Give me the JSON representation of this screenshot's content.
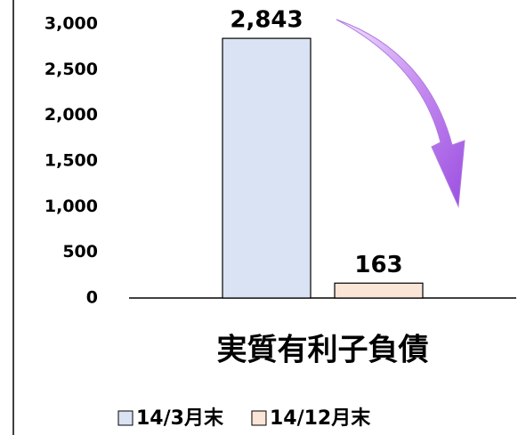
{
  "chart_data": {
    "type": "bar",
    "categories": [
      "実質有利子負債"
    ],
    "series": [
      {
        "name": "14/3月末",
        "color": "#dae3f3",
        "values": [
          2843
        ],
        "value_labels": [
          "2,843"
        ]
      },
      {
        "name": "14/12月末",
        "color": "#fbe5d6",
        "values": [
          163
        ],
        "value_labels": [
          "163"
        ]
      }
    ],
    "ylim": [
      0,
      3000
    ],
    "yticks": [
      0,
      500,
      {
        "value": 1000,
        "label": "1,000"
      },
      {
        "value": 1500,
        "label": "1,500"
      },
      {
        "value": 2000,
        "label": "2,000"
      },
      {
        "value": 2500,
        "label": "2,500"
      },
      {
        "value": 3000,
        "label": "3,000"
      }
    ],
    "legend": "bottom"
  }
}
